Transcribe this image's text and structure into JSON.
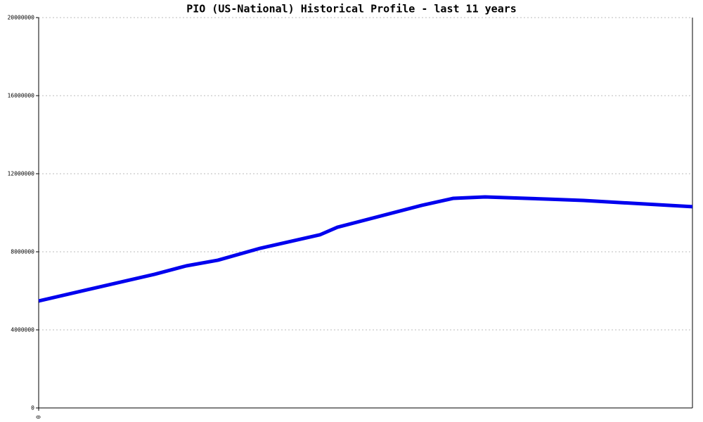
{
  "chart_data": {
    "type": "line",
    "title": "PIO (US-National) Historical Profile - last 11 years",
    "x": [
      0,
      165,
      210,
      255,
      315,
      400,
      425,
      545,
      590,
      635,
      725,
      775,
      930
    ],
    "series": [
      {
        "color": "#0000ee",
        "values": [
          5480000,
          6850000,
          7280000,
          7570000,
          8180000,
          8870000,
          9260000,
          10380000,
          10740000,
          10810000,
          10700000,
          10630000,
          10310000
        ]
      }
    ],
    "xlim": [
      0,
      930
    ],
    "xticks": [
      0
    ],
    "ylim": [
      0,
      20000000
    ],
    "yticks": [
      0,
      4000000,
      8000000,
      12000000,
      16000000,
      20000000
    ],
    "grid": true
  }
}
